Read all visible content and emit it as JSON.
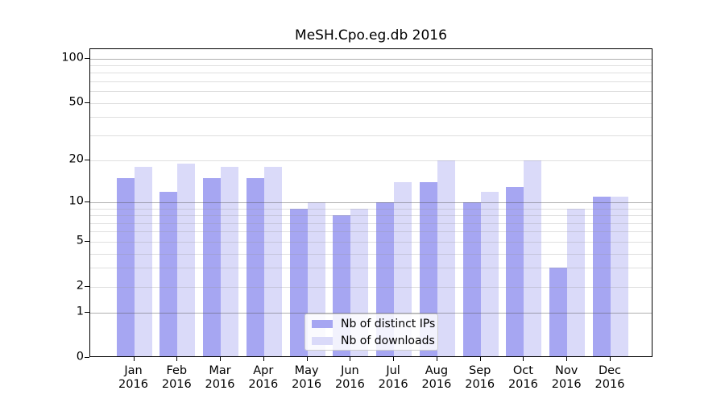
{
  "chart_data": {
    "type": "bar",
    "title": "MeSH.Cpo.eg.db 2016",
    "y_scale": "log10(1+x)",
    "ylim": [
      0,
      100
    ],
    "grid": true,
    "legend_position": "lower center inside plot",
    "categories": [
      "Jan",
      "Feb",
      "Mar",
      "Apr",
      "May",
      "Jun",
      "Jul",
      "Aug",
      "Sep",
      "Oct",
      "Nov",
      "Dec"
    ],
    "x_year_label": "2016",
    "y_ticks": [
      0,
      1,
      2,
      5,
      10,
      20,
      50,
      100
    ],
    "gridlines_major": [
      1,
      10,
      100
    ],
    "gridlines_minor": [
      2,
      3,
      4,
      5,
      6,
      7,
      8,
      9,
      20,
      30,
      40,
      50,
      60,
      70,
      80,
      90
    ],
    "series": [
      {
        "name": "Nb of distinct IPs",
        "color": "#a6a6f2",
        "values": [
          15,
          12,
          15,
          15,
          9,
          8,
          10,
          14,
          10,
          13,
          3,
          11
        ]
      },
      {
        "name": "Nb of downloads",
        "color": "#dadaf9",
        "values": [
          18,
          19,
          18,
          18,
          10,
          9,
          14,
          20,
          12,
          20,
          9,
          11
        ]
      }
    ]
  },
  "colors": {
    "background": "#ffffff",
    "axis": "#000000",
    "text": "#000000",
    "legend_border": "#cccccc",
    "legend_background": "#ffffff"
  }
}
